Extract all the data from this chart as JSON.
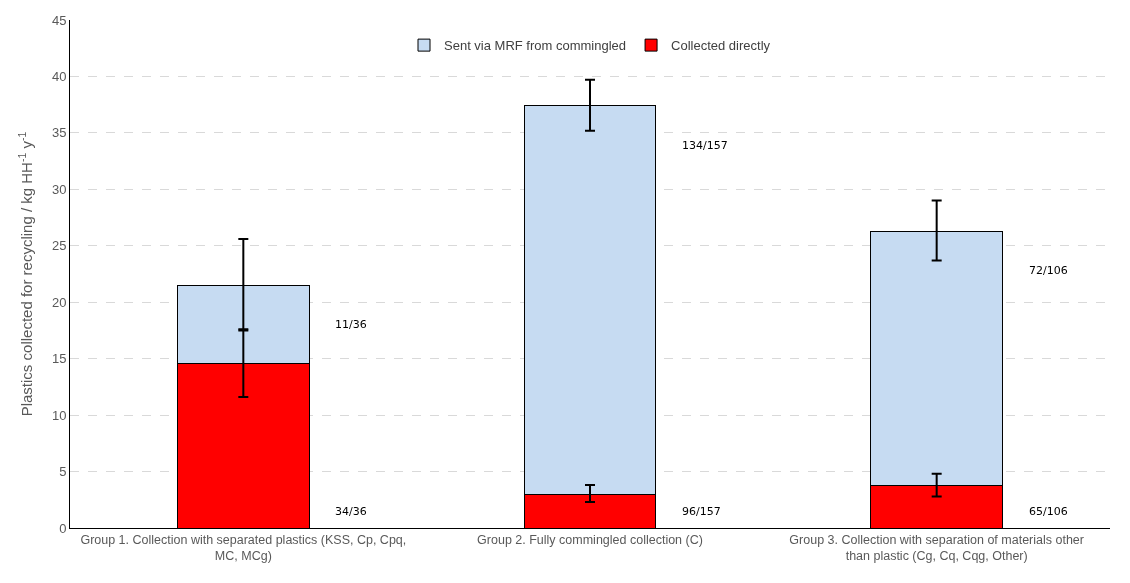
{
  "chart_data": {
    "type": "bar",
    "stacked": true,
    "ylabel": "Plastics collected for recycling / kg HH$^{-1}$ y$^{-1}$",
    "categories": [
      "Group 1. Collection with separated plastics (KSS, Cp, Cpq, MC, MCg)",
      "Group 2. Fully commingled collection (C)",
      "Group 3. Collection with separation of materials other than plastic (Cg, Cq, Cqg, Other)"
    ],
    "series": [
      {
        "name": "Collected directly",
        "color": "#ff0000",
        "values": [
          14.6,
          3.0,
          3.8
        ],
        "errors": [
          [
            11.6,
            17.6
          ],
          [
            2.3,
            3.8
          ],
          [
            2.8,
            4.8
          ]
        ]
      },
      {
        "name": "Sent via MRF from commingled",
        "color": "#c6dbf2",
        "values": [
          6.9,
          34.4,
          22.5
        ],
        "errors": [
          [
            17.5,
            25.6
          ],
          [
            35.2,
            39.7
          ],
          [
            23.7,
            29.0
          ]
        ]
      }
    ],
    "annotations": [
      "34/36",
      "11/36",
      "96/157",
      "134/157",
      "65/106",
      "72/106"
    ],
    "ylim": [
      0,
      45
    ],
    "yticks": [
      0,
      5,
      10,
      15,
      20,
      25,
      30,
      35,
      40,
      45
    ],
    "grid": "y",
    "legend": "top"
  }
}
